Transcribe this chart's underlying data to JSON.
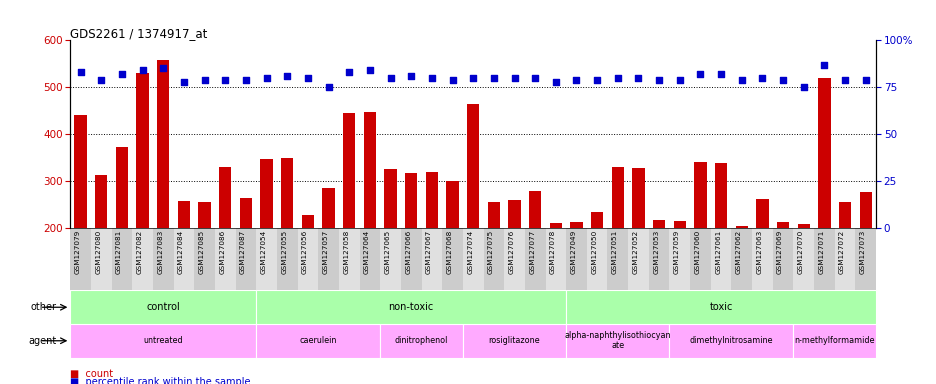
{
  "title": "GDS2261 / 1374917_at",
  "samples": [
    "GSM127079",
    "GSM127080",
    "GSM127081",
    "GSM127082",
    "GSM127083",
    "GSM127084",
    "GSM127085",
    "GSM127086",
    "GSM127087",
    "GSM127054",
    "GSM127055",
    "GSM127056",
    "GSM127057",
    "GSM127058",
    "GSM127064",
    "GSM127065",
    "GSM127066",
    "GSM127067",
    "GSM127068",
    "GSM127074",
    "GSM127075",
    "GSM127076",
    "GSM127077",
    "GSM127078",
    "GSM127049",
    "GSM127050",
    "GSM127051",
    "GSM127052",
    "GSM127053",
    "GSM127059",
    "GSM127060",
    "GSM127061",
    "GSM127062",
    "GSM127063",
    "GSM127069",
    "GSM127070",
    "GSM127071",
    "GSM127072",
    "GSM127073"
  ],
  "counts": [
    440,
    313,
    372,
    530,
    558,
    258,
    256,
    330,
    263,
    348,
    349,
    227,
    285,
    445,
    448,
    325,
    318,
    320,
    300,
    465,
    255,
    260,
    279,
    211,
    213,
    235,
    329,
    328,
    216,
    215,
    340,
    338,
    205,
    262,
    212,
    208,
    520,
    256,
    277
  ],
  "percentiles": [
    83,
    79,
    82,
    84,
    85,
    78,
    79,
    79,
    79,
    80,
    81,
    80,
    75,
    83,
    84,
    80,
    81,
    80,
    79,
    80,
    80,
    80,
    80,
    78,
    79,
    79,
    80,
    80,
    79,
    79,
    82,
    82,
    79,
    80,
    79,
    75,
    87,
    79,
    79
  ],
  "bar_color": "#cc0000",
  "dot_color": "#0000cc",
  "left_ylim": [
    200,
    600
  ],
  "left_yticks": [
    200,
    300,
    400,
    500,
    600
  ],
  "right_ylim": [
    0,
    100
  ],
  "right_yticks": [
    0,
    25,
    50,
    75,
    100
  ],
  "right_yticklabels": [
    "0",
    "25",
    "50",
    "75",
    "100%"
  ],
  "hlines": [
    300,
    400,
    500
  ],
  "other_groups": [
    {
      "label": "control",
      "start": 0,
      "end": 9,
      "color": "#aaffaa"
    },
    {
      "label": "non-toxic",
      "start": 9,
      "end": 24,
      "color": "#aaffaa"
    },
    {
      "label": "toxic",
      "start": 24,
      "end": 39,
      "color": "#aaffaa"
    }
  ],
  "agent_groups": [
    {
      "label": "untreated",
      "start": 0,
      "end": 9,
      "color": "#ffaaff"
    },
    {
      "label": "caerulein",
      "start": 9,
      "end": 15,
      "color": "#ffaaff"
    },
    {
      "label": "dinitrophenol",
      "start": 15,
      "end": 19,
      "color": "#ffaaff"
    },
    {
      "label": "rosiglitazone",
      "start": 19,
      "end": 24,
      "color": "#ffaaff"
    },
    {
      "label": "alpha-naphthylisothiocyan\nate",
      "start": 24,
      "end": 29,
      "color": "#ffaaff"
    },
    {
      "label": "dimethylnitrosamine",
      "start": 29,
      "end": 35,
      "color": "#ffaaff"
    },
    {
      "label": "n-methylformamide",
      "start": 35,
      "end": 39,
      "color": "#ffaaff"
    }
  ],
  "tick_bg_even": "#cccccc",
  "tick_bg_odd": "#e0e0e0",
  "legend_items": [
    {
      "marker": "s",
      "color": "#cc0000",
      "label": "count"
    },
    {
      "marker": "s",
      "color": "#0000cc",
      "label": "percentile rank within the sample"
    }
  ]
}
